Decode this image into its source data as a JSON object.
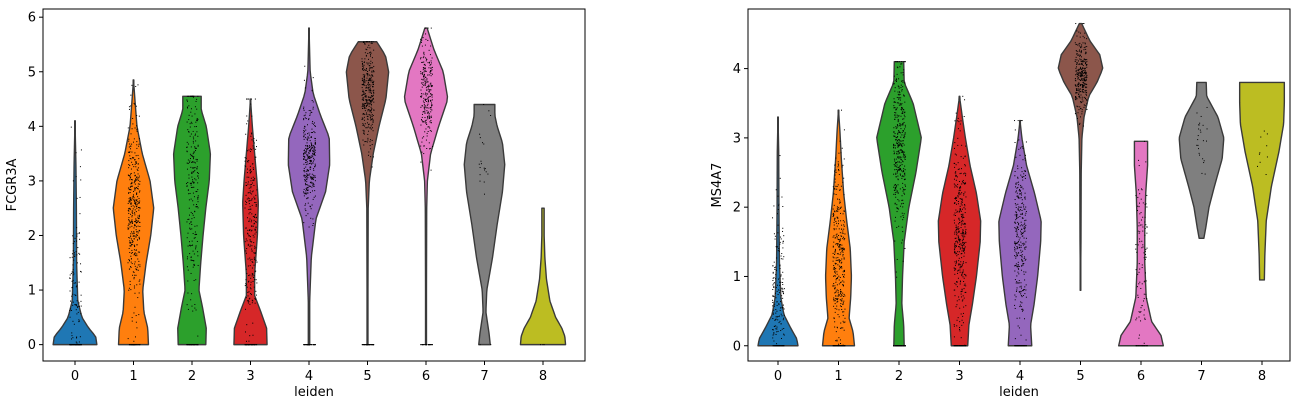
{
  "chart_data": [
    {
      "type": "violin",
      "xlabel": "leiden",
      "ylabel": "FCGR3A",
      "ylim": [
        -0.3,
        6.15
      ],
      "yticks": [
        0,
        1,
        2,
        3,
        4,
        5,
        6
      ],
      "categories": [
        "0",
        "1",
        "2",
        "3",
        "4",
        "5",
        "6",
        "7",
        "8"
      ],
      "colors": [
        "#1f77b4",
        "#ff7f0e",
        "#2ca02c",
        "#d62728",
        "#9467bd",
        "#8c564b",
        "#e377c2",
        "#7f7f7f",
        "#bcbd22"
      ],
      "violins": [
        {
          "category": "0",
          "min": 0,
          "max": 4.1,
          "profile": [
            [
              0,
              0.95
            ],
            [
              0.15,
              0.9
            ],
            [
              0.3,
              0.6
            ],
            [
              0.5,
              0.3
            ],
            [
              0.8,
              0.12
            ],
            [
              1.5,
              0.07
            ],
            [
              2.5,
              0.06
            ],
            [
              3.3,
              0.04
            ],
            [
              4.1,
              0
            ]
          ],
          "n_points": 160,
          "point_mean": 0.7,
          "point_spread": 1.1
        },
        {
          "category": "1",
          "min": 0,
          "max": 4.85,
          "profile": [
            [
              0,
              0.65
            ],
            [
              0.3,
              0.62
            ],
            [
              0.6,
              0.45
            ],
            [
              1.0,
              0.4
            ],
            [
              1.5,
              0.55
            ],
            [
              2.0,
              0.75
            ],
            [
              2.5,
              0.88
            ],
            [
              3.0,
              0.72
            ],
            [
              3.5,
              0.38
            ],
            [
              4.0,
              0.15
            ],
            [
              4.5,
              0.06
            ],
            [
              4.85,
              0
            ]
          ],
          "n_points": 420,
          "point_mean": 2.4,
          "point_spread": 0.9
        },
        {
          "category": "2",
          "min": 0,
          "max": 4.55,
          "profile": [
            [
              0,
              0.6
            ],
            [
              0.3,
              0.62
            ],
            [
              0.7,
              0.45
            ],
            [
              1.0,
              0.3
            ],
            [
              1.5,
              0.38
            ],
            [
              2.0,
              0.48
            ],
            [
              2.5,
              0.6
            ],
            [
              3.0,
              0.75
            ],
            [
              3.5,
              0.8
            ],
            [
              4.0,
              0.62
            ],
            [
              4.3,
              0.4
            ],
            [
              4.55,
              0.4
            ]
          ],
          "n_points": 280,
          "point_mean": 3.0,
          "point_spread": 1.0
        },
        {
          "category": "3",
          "min": 0,
          "max": 4.5,
          "profile": [
            [
              0,
              0.72
            ],
            [
              0.3,
              0.7
            ],
            [
              0.6,
              0.45
            ],
            [
              0.9,
              0.18
            ],
            [
              1.3,
              0.18
            ],
            [
              2.0,
              0.3
            ],
            [
              2.6,
              0.34
            ],
            [
              3.0,
              0.28
            ],
            [
              3.5,
              0.18
            ],
            [
              4.0,
              0.08
            ],
            [
              4.5,
              0
            ]
          ],
          "n_points": 300,
          "point_mean": 2.2,
          "point_spread": 1.0
        },
        {
          "category": "4",
          "min": 0,
          "max": 5.8,
          "profile": [
            [
              0,
              0.03
            ],
            [
              0.8,
              0.03
            ],
            [
              1.6,
              0.1
            ],
            [
              2.3,
              0.3
            ],
            [
              2.8,
              0.72
            ],
            [
              3.3,
              0.9
            ],
            [
              3.8,
              0.88
            ],
            [
              4.2,
              0.5
            ],
            [
              4.6,
              0.18
            ],
            [
              5.0,
              0.05
            ],
            [
              5.8,
              0
            ]
          ],
          "n_points": 350,
          "point_mean": 3.4,
          "point_spread": 0.5
        },
        {
          "category": "5",
          "min": 0,
          "max": 5.55,
          "profile": [
            [
              0,
              0.02
            ],
            [
              1.0,
              0.02
            ],
            [
              2.5,
              0.03
            ],
            [
              3.0,
              0.08
            ],
            [
              3.5,
              0.25
            ],
            [
              4.0,
              0.5
            ],
            [
              4.5,
              0.8
            ],
            [
              5.0,
              0.92
            ],
            [
              5.3,
              0.78
            ],
            [
              5.55,
              0.4
            ]
          ],
          "n_points": 380,
          "point_mean": 4.6,
          "point_spread": 0.5
        },
        {
          "category": "6",
          "min": 0,
          "max": 5.8,
          "profile": [
            [
              0,
              0.02
            ],
            [
              1.0,
              0.02
            ],
            [
              2.5,
              0.03
            ],
            [
              3.0,
              0.06
            ],
            [
              3.5,
              0.2
            ],
            [
              4.0,
              0.55
            ],
            [
              4.5,
              0.95
            ],
            [
              5.0,
              0.75
            ],
            [
              5.4,
              0.35
            ],
            [
              5.8,
              0.05
            ]
          ],
          "n_points": 280,
          "point_mean": 4.6,
          "point_spread": 0.5
        },
        {
          "category": "7",
          "min": 0,
          "max": 4.4,
          "profile": [
            [
              0,
              0.25
            ],
            [
              0.2,
              0.2
            ],
            [
              0.6,
              0.06
            ],
            [
              1.0,
              0.1
            ],
            [
              1.6,
              0.35
            ],
            [
              2.2,
              0.55
            ],
            [
              2.8,
              0.78
            ],
            [
              3.3,
              0.88
            ],
            [
              3.7,
              0.78
            ],
            [
              4.0,
              0.55
            ],
            [
              4.2,
              0.45
            ],
            [
              4.4,
              0.45
            ]
          ],
          "n_points": 22,
          "point_mean": 3.4,
          "point_spread": 0.6
        },
        {
          "category": "8",
          "min": 0,
          "max": 2.5,
          "profile": [
            [
              0,
              0.98
            ],
            [
              0.15,
              0.95
            ],
            [
              0.3,
              0.82
            ],
            [
              0.5,
              0.55
            ],
            [
              0.8,
              0.3
            ],
            [
              1.2,
              0.15
            ],
            [
              1.6,
              0.08
            ],
            [
              2.0,
              0.05
            ],
            [
              2.5,
              0.05
            ]
          ],
          "n_points": 3,
          "point_mean": 0.0,
          "point_spread": 0.05
        }
      ]
    },
    {
      "type": "violin",
      "xlabel": "leiden",
      "ylabel": "MS4A7",
      "ylim": [
        -0.22,
        4.86
      ],
      "yticks": [
        0,
        1,
        2,
        3,
        4
      ],
      "categories": [
        "0",
        "1",
        "2",
        "3",
        "4",
        "5",
        "6",
        "7",
        "8"
      ],
      "colors": [
        "#1f77b4",
        "#ff7f0e",
        "#2ca02c",
        "#d62728",
        "#9467bd",
        "#8c564b",
        "#e377c2",
        "#7f7f7f",
        "#bcbd22"
      ],
      "violins": [
        {
          "category": "0",
          "min": 0,
          "max": 3.3,
          "profile": [
            [
              0,
              0.85
            ],
            [
              0.1,
              0.8
            ],
            [
              0.25,
              0.55
            ],
            [
              0.45,
              0.25
            ],
            [
              0.7,
              0.12
            ],
            [
              1.2,
              0.06
            ],
            [
              2.0,
              0.04
            ],
            [
              2.8,
              0.03
            ],
            [
              3.3,
              0
            ]
          ],
          "n_points": 220,
          "point_mean": 0.6,
          "point_spread": 0.7
        },
        {
          "category": "1",
          "min": 0,
          "max": 3.4,
          "profile": [
            [
              0,
              0.68
            ],
            [
              0.2,
              0.62
            ],
            [
              0.4,
              0.45
            ],
            [
              0.7,
              0.52
            ],
            [
              1.0,
              0.55
            ],
            [
              1.4,
              0.5
            ],
            [
              1.8,
              0.35
            ],
            [
              2.2,
              0.22
            ],
            [
              2.7,
              0.12
            ],
            [
              3.1,
              0.06
            ],
            [
              3.4,
              0
            ]
          ],
          "n_points": 380,
          "point_mean": 1.3,
          "point_spread": 0.7
        },
        {
          "category": "2",
          "min": 0,
          "max": 4.1,
          "profile": [
            [
              0,
              0.22
            ],
            [
              0.3,
              0.2
            ],
            [
              0.6,
              0.12
            ],
            [
              1.0,
              0.15
            ],
            [
              1.5,
              0.22
            ],
            [
              2.0,
              0.42
            ],
            [
              2.5,
              0.72
            ],
            [
              3.0,
              0.95
            ],
            [
              3.5,
              0.6
            ],
            [
              3.8,
              0.22
            ],
            [
              4.1,
              0.2
            ]
          ],
          "n_points": 420,
          "point_mean": 2.9,
          "point_spread": 0.6
        },
        {
          "category": "3",
          "min": 0,
          "max": 3.6,
          "profile": [
            [
              0,
              0.35
            ],
            [
              0.3,
              0.4
            ],
            [
              0.6,
              0.55
            ],
            [
              1.0,
              0.72
            ],
            [
              1.5,
              0.88
            ],
            [
              1.8,
              0.9
            ],
            [
              2.2,
              0.72
            ],
            [
              2.6,
              0.45
            ],
            [
              3.0,
              0.25
            ],
            [
              3.3,
              0.12
            ],
            [
              3.6,
              0
            ]
          ],
          "n_points": 420,
          "point_mean": 1.7,
          "point_spread": 0.7
        },
        {
          "category": "4",
          "min": 0,
          "max": 3.25,
          "profile": [
            [
              0,
              0.5
            ],
            [
              0.3,
              0.45
            ],
            [
              0.6,
              0.6
            ],
            [
              1.0,
              0.75
            ],
            [
              1.5,
              0.88
            ],
            [
              1.8,
              0.9
            ],
            [
              2.2,
              0.62
            ],
            [
              2.6,
              0.28
            ],
            [
              3.0,
              0.08
            ],
            [
              3.25,
              0
            ]
          ],
          "n_points": 360,
          "point_mean": 1.6,
          "point_spread": 0.7
        },
        {
          "category": "5",
          "min": 0.8,
          "max": 4.65,
          "profile": [
            [
              0.8,
              0
            ],
            [
              1.5,
              0.02
            ],
            [
              2.5,
              0.03
            ],
            [
              3.0,
              0.06
            ],
            [
              3.3,
              0.15
            ],
            [
              3.6,
              0.35
            ],
            [
              3.8,
              0.7
            ],
            [
              4.0,
              0.95
            ],
            [
              4.2,
              0.82
            ],
            [
              4.4,
              0.4
            ],
            [
              4.65,
              0.05
            ]
          ],
          "n_points": 300,
          "point_mean": 3.9,
          "point_spread": 0.3
        },
        {
          "category": "6",
          "min": 0,
          "max": 2.95,
          "profile": [
            [
              0,
              0.95
            ],
            [
              0.15,
              0.85
            ],
            [
              0.35,
              0.45
            ],
            [
              0.7,
              0.22
            ],
            [
              1.2,
              0.16
            ],
            [
              1.7,
              0.16
            ],
            [
              2.2,
              0.2
            ],
            [
              2.6,
              0.28
            ],
            [
              2.95,
              0.28
            ]
          ],
          "n_points": 120,
          "point_mean": 1.4,
          "point_spread": 0.8
        },
        {
          "category": "7",
          "min": 1.55,
          "max": 3.8,
          "profile": [
            [
              1.55,
              0.1
            ],
            [
              1.7,
              0.18
            ],
            [
              2.0,
              0.32
            ],
            [
              2.3,
              0.55
            ],
            [
              2.7,
              0.88
            ],
            [
              3.0,
              0.95
            ],
            [
              3.3,
              0.7
            ],
            [
              3.6,
              0.22
            ],
            [
              3.8,
              0.2
            ]
          ],
          "n_points": 25,
          "point_mean": 2.9,
          "point_spread": 0.4
        },
        {
          "category": "8",
          "min": 0.95,
          "max": 3.8,
          "profile": [
            [
              0.95,
              0.1
            ],
            [
              1.3,
              0.12
            ],
            [
              1.8,
              0.18
            ],
            [
              2.3,
              0.4
            ],
            [
              2.8,
              0.72
            ],
            [
              3.2,
              0.92
            ],
            [
              3.5,
              0.95
            ],
            [
              3.8,
              0.95
            ]
          ],
          "n_points": 10,
          "point_mean": 3.1,
          "point_spread": 0.5
        }
      ]
    }
  ]
}
